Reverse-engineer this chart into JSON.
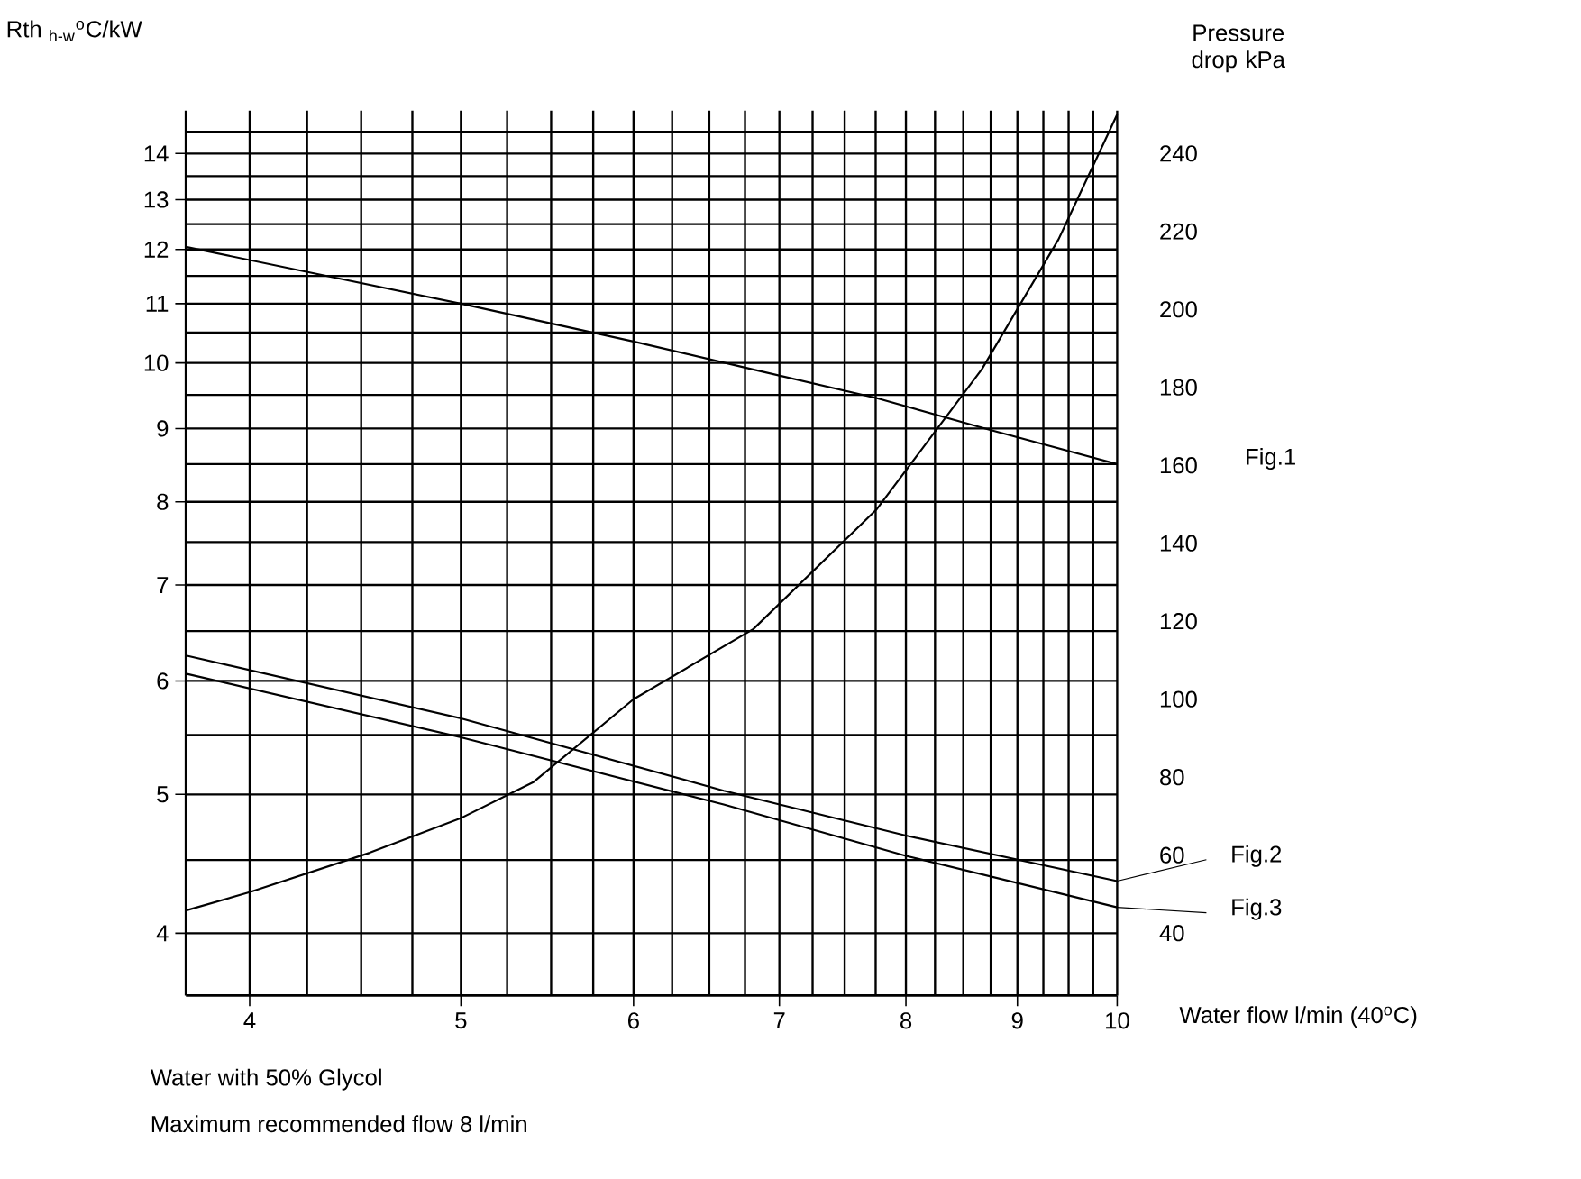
{
  "chart_data": {
    "type": "line",
    "log": "xy",
    "xlabel": "Water flow l/min (40$^{o}$C)",
    "ylabel": "Rth $_{h-w}$$^{o}$C/kW",
    "y2label": "Pressure drop kPa",
    "xlim": [
      3.74,
      10
    ],
    "xticks": [
      4,
      5,
      6,
      7,
      8,
      9,
      10
    ],
    "ylim": [
      3.62,
      15.0
    ],
    "yticks": [
      4,
      5,
      6,
      7,
      8,
      9,
      10,
      11,
      12,
      13,
      14
    ],
    "y2lim": [
      24.0,
      251
    ],
    "y2ticks": [
      40,
      60,
      80,
      100,
      120,
      140,
      160,
      180,
      200,
      220,
      240
    ],
    "grid": true,
    "legend": "right",
    "annotations": [
      "Water with 50% Glycol",
      "Maximum recommended flow 8 l/min"
    ],
    "series": [
      {
        "name": "Fig.1",
        "color": "#000000",
        "x": [
          3.74,
          5,
          6,
          6.8,
          7.76,
          8.7,
          10
        ],
        "values": [
          12.05,
          11.0,
          10.35,
          9.9,
          9.45,
          9.0,
          8.5
        ]
      },
      {
        "name": "Fig.2",
        "color": "#000000",
        "x": [
          3.74,
          5,
          6.6,
          8,
          10
        ],
        "values": [
          6.25,
          5.65,
          5.03,
          4.68,
          4.35
        ]
      },
      {
        "name": "Fig.3",
        "color": "#000000",
        "x": [
          3.74,
          5,
          6.6,
          8,
          10
        ],
        "values": [
          6.07,
          5.48,
          4.92,
          4.53,
          4.17
        ]
      },
      {
        "axis": "y2",
        "color": "#000000",
        "x": [
          3.74,
          4,
          4.54,
          5,
          5.4,
          6,
          6.81,
          7.76,
          8.67,
          9.4,
          10
        ],
        "values": [
          45.8,
          50.5,
          60.6,
          69.5,
          78.8,
          100,
          118,
          148.8,
          184.7,
          218,
          250
        ]
      }
    ]
  }
}
